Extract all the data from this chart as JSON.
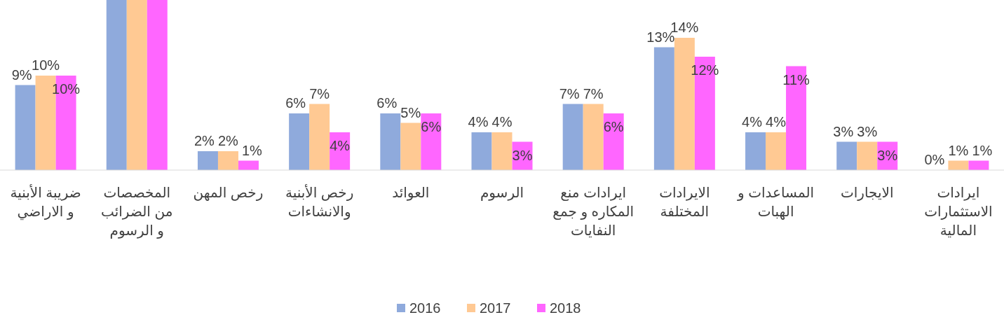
{
  "chart_data": {
    "type": "bar",
    "categories": [
      "ضريبة الأبنية\nو الاراضي",
      "المخصصات\nمن الضرائب\nو الرسوم",
      "رخص المهن",
      "رخص الأبنية\nوالانشاءات",
      "العوائد",
      "الرسوم",
      "ايرادات منع\nالمكاره و جمع\nالنفايات",
      "الايرادات\nالمختلفة",
      "المساعدات و\nالهبات",
      "الايجارات",
      "ايرادات\nالاستثمارات\nالمالية"
    ],
    "series": [
      {
        "name": "2016",
        "color": "#8faadc",
        "values": [
          9,
          18,
          2,
          6,
          6,
          4,
          7,
          13,
          4,
          3,
          0
        ],
        "value_labels": [
          "9%",
          null,
          "2%",
          "6%",
          "6%",
          "4%",
          "7%",
          "13%",
          "4%",
          "3%",
          "0%"
        ]
      },
      {
        "name": "2017",
        "color": "#ffc993",
        "values": [
          10,
          18,
          2,
          7,
          5,
          4,
          7,
          14,
          4,
          3,
          1
        ],
        "value_labels": [
          "10%",
          null,
          "2%",
          "7%",
          "5%",
          "4%",
          "7%",
          "14%",
          "4%",
          "3%",
          "1%"
        ]
      },
      {
        "name": "2018",
        "color": "#ff66ff",
        "values": [
          10,
          18,
          1,
          4,
          6,
          3,
          6,
          12,
          11,
          3,
          1
        ],
        "value_labels": [
          "10%",
          null,
          "1%",
          "4%",
          "6%",
          "3%",
          "6%",
          "12%",
          "11%",
          "3%",
          "1%"
        ]
      }
    ],
    "legend": "bottom"
  }
}
